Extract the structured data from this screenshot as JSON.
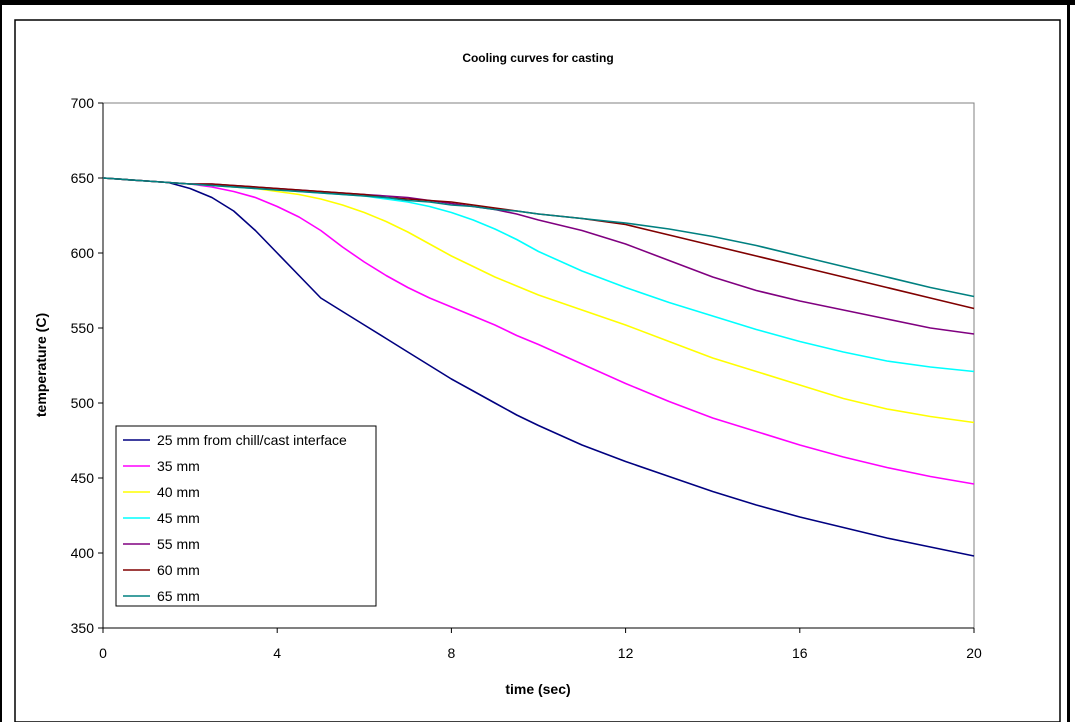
{
  "chart_data": {
    "type": "line",
    "title": "Cooling curves for casting",
    "xlabel": "time (sec)",
    "ylabel": "temperature (C)",
    "xlim": [
      0,
      20
    ],
    "ylim": [
      350,
      700
    ],
    "x_ticks": [
      0,
      4,
      8,
      12,
      16,
      20
    ],
    "y_ticks": [
      350,
      400,
      450,
      500,
      550,
      600,
      650,
      700
    ],
    "grid": false,
    "legend_position": "bottom-left",
    "x": [
      0,
      1,
      1.5,
      2,
      2.5,
      3,
      3.5,
      4,
      4.5,
      5,
      5.5,
      6,
      6.5,
      7,
      7.5,
      8,
      8.5,
      9,
      9.5,
      10,
      11,
      12,
      13,
      14,
      15,
      16,
      17,
      18,
      19,
      20
    ],
    "series": [
      {
        "name": "25 mm from chill/cast interface",
        "color": "#000080",
        "values": [
          650,
          648,
          647,
          643,
          637,
          628,
          615,
          600,
          585,
          570,
          561,
          552,
          543,
          534,
          525,
          516,
          508,
          500,
          492,
          485,
          472,
          461,
          451,
          441,
          432,
          424,
          417,
          410,
          404,
          398
        ]
      },
      {
        "name": "35 mm",
        "color": "#FF00FF",
        "values": [
          650,
          648,
          647,
          646,
          644,
          641,
          637,
          631,
          624,
          615,
          604,
          594,
          585,
          577,
          570,
          564,
          558,
          552,
          545,
          539,
          526,
          513,
          501,
          490,
          481,
          472,
          464,
          457,
          451,
          446
        ]
      },
      {
        "name": "40 mm",
        "color": "#FFFF00",
        "values": [
          650,
          648,
          647,
          646,
          645,
          644,
          643,
          641,
          639,
          636,
          632,
          627,
          621,
          614,
          606,
          598,
          591,
          584,
          578,
          572,
          562,
          552,
          541,
          530,
          521,
          512,
          503,
          496,
          491,
          487
        ]
      },
      {
        "name": "45 mm",
        "color": "#00FFFF",
        "values": [
          650,
          648,
          647,
          646,
          645,
          644,
          643,
          642,
          641,
          640,
          639,
          638,
          636,
          634,
          631,
          627,
          622,
          616,
          609,
          601,
          588,
          577,
          567,
          558,
          549,
          541,
          534,
          528,
          524,
          521
        ]
      },
      {
        "name": "55 mm",
        "color": "#800080",
        "values": [
          650,
          648,
          647,
          646,
          646,
          645,
          644,
          643,
          642,
          641,
          640,
          639,
          638,
          637,
          635,
          633,
          631,
          629,
          626,
          622,
          615,
          606,
          595,
          584,
          575,
          568,
          562,
          556,
          550,
          546
        ]
      },
      {
        "name": "60 mm",
        "color": "#800000",
        "values": [
          650,
          648,
          647,
          646,
          646,
          645,
          644,
          643,
          642,
          641,
          640,
          639,
          637,
          636,
          635,
          634,
          632,
          630,
          628,
          626,
          623,
          619,
          612,
          605,
          598,
          591,
          584,
          577,
          570,
          563
        ]
      },
      {
        "name": "65 mm",
        "color": "#008080",
        "values": [
          650,
          648,
          647,
          646,
          645,
          644,
          643,
          642,
          641,
          640,
          639,
          638,
          637,
          635,
          634,
          632,
          631,
          629,
          628,
          626,
          623,
          620,
          616,
          611,
          605,
          598,
          591,
          584,
          577,
          571
        ]
      }
    ]
  }
}
